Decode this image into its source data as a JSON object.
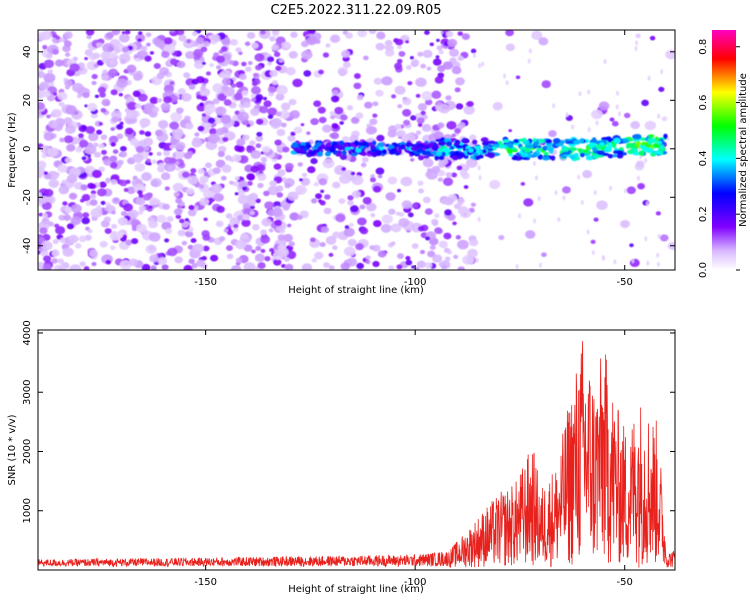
{
  "title": "C2E5.2022.311.22.09.R05",
  "chart_data": [
    {
      "type": "heatmap",
      "title": "C2E5.2022.311.22.09.R05",
      "xlabel": "Height of straight line (km)",
      "ylabel": "Frequency (Hz)",
      "xlim": [
        -190,
        -38
      ],
      "ylim": [
        -50,
        49
      ],
      "xticks": [
        -150,
        -100,
        -50
      ],
      "yticks": [
        -40,
        -20,
        0,
        20,
        40
      ],
      "colorbar": {
        "label": "Normalized spectral amplitude",
        "range": [
          0,
          0.86
        ],
        "ticks": [
          0.0,
          0.2,
          0.4,
          0.6,
          0.8
        ],
        "colormap": [
          "#ffffff",
          "#8000ff",
          "#0000ff",
          "#00ffff",
          "#00ff00",
          "#ffff00",
          "#ff0000",
          "#ff00c0"
        ]
      },
      "features": [
        {
          "description_x_range": [
            -130,
            -40
          ],
          "frequency_hz": 0,
          "note": "signal band"
        }
      ]
    },
    {
      "type": "line",
      "xlabel": "Height of straight line (km)",
      "ylabel": "SNR (10 * v/v)",
      "xlim": [
        -190,
        -38
      ],
      "ylim": [
        0,
        4050
      ],
      "xticks": [
        -150,
        -100,
        -50
      ],
      "yticks": [
        1000,
        2000,
        3000,
        4000
      ],
      "color": "#e8211d",
      "envelope": [
        {
          "x": -190,
          "y": 180
        },
        {
          "x": -150,
          "y": 210
        },
        {
          "x": -120,
          "y": 240
        },
        {
          "x": -100,
          "y": 260
        },
        {
          "x": -92,
          "y": 330
        },
        {
          "x": -88,
          "y": 650
        },
        {
          "x": -84,
          "y": 1000
        },
        {
          "x": -80,
          "y": 1300
        },
        {
          "x": -76,
          "y": 1500
        },
        {
          "x": -72,
          "y": 2150
        },
        {
          "x": -70,
          "y": 1400
        },
        {
          "x": -66,
          "y": 1850
        },
        {
          "x": -63,
          "y": 3000
        },
        {
          "x": -60,
          "y": 4000
        },
        {
          "x": -57,
          "y": 3200
        },
        {
          "x": -55,
          "y": 3850
        },
        {
          "x": -52,
          "y": 2800
        },
        {
          "x": -49,
          "y": 2300
        },
        {
          "x": -47,
          "y": 3000
        },
        {
          "x": -44,
          "y": 2700
        },
        {
          "x": -42,
          "y": 2500
        },
        {
          "x": -40,
          "y": 300
        },
        {
          "x": -38,
          "y": 350
        }
      ]
    }
  ]
}
